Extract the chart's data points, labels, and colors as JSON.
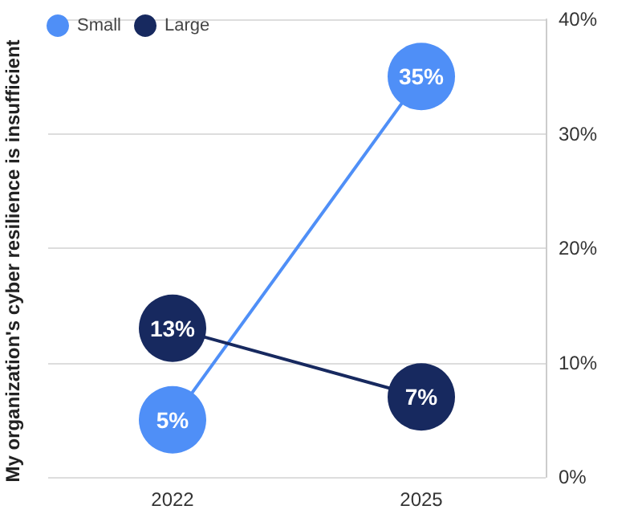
{
  "chart_data": {
    "type": "line",
    "ylabel": "My organization's cyber resilience is insufficient",
    "categories": [
      "2022",
      "2025"
    ],
    "series": [
      {
        "name": "Small",
        "color": "#4f8ff7",
        "values": [
          5,
          35
        ],
        "value_labels": [
          "5%",
          "35%"
        ]
      },
      {
        "name": "Large",
        "color": "#17295f",
        "values": [
          13,
          7
        ],
        "value_labels": [
          "13%",
          "7%"
        ]
      }
    ],
    "ylim": [
      0,
      40
    ],
    "yticks": [
      {
        "value": 0,
        "label": "0%"
      },
      {
        "value": 10,
        "label": "10%"
      },
      {
        "value": 20,
        "label": "20%"
      },
      {
        "value": 30,
        "label": "30%"
      },
      {
        "value": 40,
        "label": "40%"
      }
    ],
    "grid": "y",
    "legend": "top left",
    "marker": "circle",
    "line_style": "solid"
  }
}
